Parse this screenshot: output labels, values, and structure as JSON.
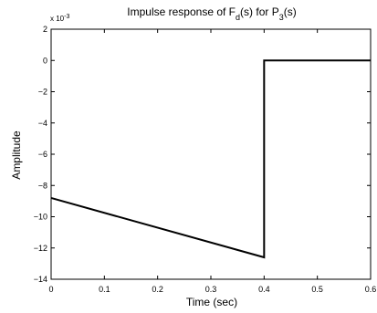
{
  "chart_data": {
    "type": "line",
    "title_parts": [
      {
        "text": "Impulse response of F",
        "sub": false
      },
      {
        "text": "d",
        "sub": true
      },
      {
        "text": "(s) for P",
        "sub": false
      },
      {
        "text": "3",
        "sub": true
      },
      {
        "text": "(s)",
        "sub": false
      }
    ],
    "xlabel": "Time (sec)",
    "ylabel": "Amplitude",
    "y_exponent_label": "x 10",
    "y_exponent_power": "-3",
    "xlim": [
      0,
      0.6
    ],
    "ylim": [
      -14,
      2
    ],
    "x_ticks": [
      0,
      0.1,
      0.2,
      0.3,
      0.4,
      0.5,
      0.6
    ],
    "x_tick_labels": [
      "0",
      "0.1",
      "0.2",
      "0.3",
      "0.4",
      "0.5",
      "0.6"
    ],
    "y_ticks": [
      2,
      0,
      -2,
      -4,
      -6,
      -8,
      -10,
      -12,
      -14
    ],
    "y_tick_labels": [
      "2",
      "0",
      "−2",
      "−4",
      "−6",
      "−8",
      "−10",
      "−12",
      "−14"
    ],
    "grid": false,
    "series": [
      {
        "color": "#000000",
        "x": [
          0,
          0.4,
          0.4,
          0.6
        ],
        "y": [
          -8.8,
          -12.6,
          0,
          0
        ]
      }
    ]
  }
}
